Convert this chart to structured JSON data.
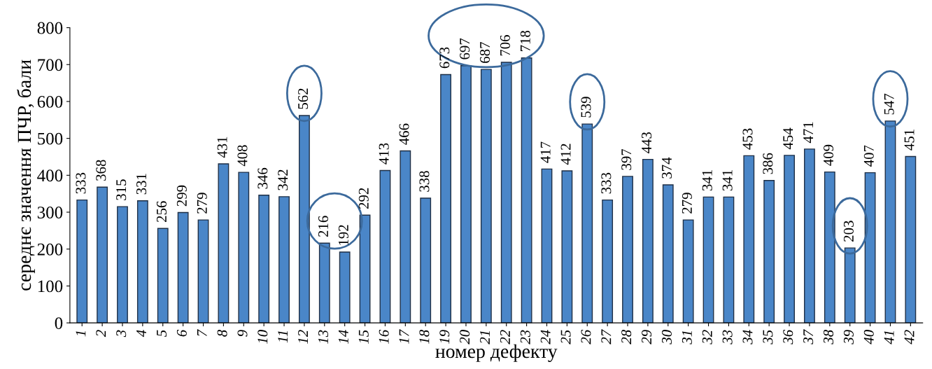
{
  "chart_data": {
    "type": "bar",
    "xlabel": "номер дефекту",
    "ylabel": "середнє значення ПЧР, бали",
    "categories": [
      "1",
      "2",
      "3",
      "4",
      "5",
      "6",
      "7",
      "8",
      "9",
      "10",
      "11",
      "12",
      "13",
      "14",
      "15",
      "16",
      "17",
      "18",
      "19",
      "20",
      "21",
      "22",
      "23",
      "24",
      "25",
      "26",
      "27",
      "28",
      "29",
      "30",
      "31",
      "32",
      "33",
      "34",
      "35",
      "36",
      "37",
      "38",
      "39",
      "40",
      "41",
      "42"
    ],
    "values": [
      333,
      368,
      315,
      331,
      256,
      299,
      279,
      431,
      408,
      346,
      342,
      562,
      216,
      192,
      292,
      413,
      466,
      338,
      673,
      697,
      687,
      706,
      718,
      417,
      412,
      539,
      333,
      397,
      443,
      374,
      279,
      341,
      341,
      453,
      386,
      454,
      471,
      409,
      203,
      407,
      547,
      451
    ],
    "color": "#4a86c8",
    "ylim": [
      0,
      800
    ],
    "yticks": [
      0,
      100,
      200,
      300,
      400,
      500,
      600,
      700,
      800
    ],
    "grid": false,
    "data_labels": true
  }
}
